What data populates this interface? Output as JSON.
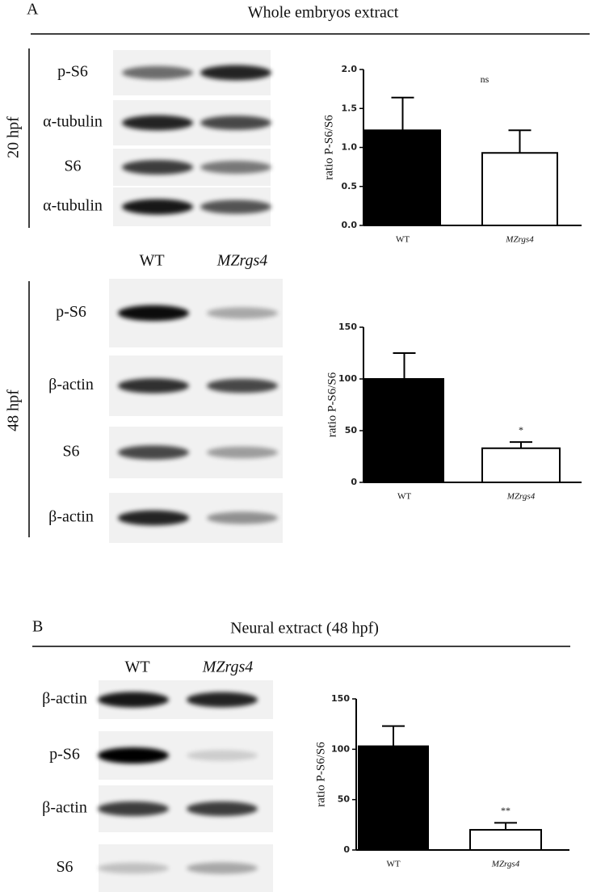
{
  "figure": {
    "panels": [
      {
        "label": "A",
        "title": "Whole embryos extract",
        "lanes": [
          "WT",
          "MZrgs4"
        ],
        "blocks": [
          {
            "stage": "20 hpf",
            "rows": [
              "p-S6",
              "α-tubulin",
              "S6",
              "α-tubulin"
            ]
          },
          {
            "stage": "48 hpf",
            "rows": [
              "p-S6",
              "β-actin",
              "S6",
              "β-actin"
            ]
          }
        ]
      },
      {
        "label": "B",
        "title": "Neural extract (48 hpf)",
        "lanes": [
          "WT",
          "MZrgs4"
        ],
        "rows": [
          "β-actin",
          "p-S6",
          "β-actin",
          "S6"
        ]
      }
    ]
  },
  "chart_data": [
    {
      "type": "bar",
      "ylabel": "ratio P-S6/S6",
      "categories": [
        "WT",
        "MZrgs4"
      ],
      "values": [
        1.22,
        0.93
      ],
      "errors": [
        0.42,
        0.29
      ],
      "colors": [
        "#000000",
        "#ffffff"
      ],
      "ylim": [
        0,
        2
      ],
      "yticks": [
        {
          "value": 0,
          "label": "0.0"
        },
        {
          "value": 0.5,
          "label": "0.5"
        },
        {
          "value": 1,
          "label": "1.0"
        },
        {
          "value": 1.5,
          "label": "1.5"
        },
        {
          "value": 2,
          "label": "2.0"
        }
      ],
      "annotation": "ns"
    },
    {
      "type": "bar",
      "ylabel": "ratio P-S6/S6",
      "categories": [
        "WT",
        "MZrgs4"
      ],
      "values": [
        100,
        33
      ],
      "errors": [
        25,
        6
      ],
      "colors": [
        "#000000",
        "#ffffff"
      ],
      "ylim": [
        0,
        150
      ],
      "yticks": [
        0,
        50,
        100,
        150
      ],
      "annotation": "*"
    },
    {
      "type": "bar",
      "ylabel": "ratio P-S6/S6",
      "categories": [
        "WT",
        "MZrgs4"
      ],
      "values": [
        103,
        20
      ],
      "errors": [
        20,
        7
      ],
      "colors": [
        "#000000",
        "#ffffff"
      ],
      "ylim": [
        0,
        150
      ],
      "yticks": [
        0,
        50,
        100,
        150
      ],
      "annotation": "**"
    }
  ]
}
